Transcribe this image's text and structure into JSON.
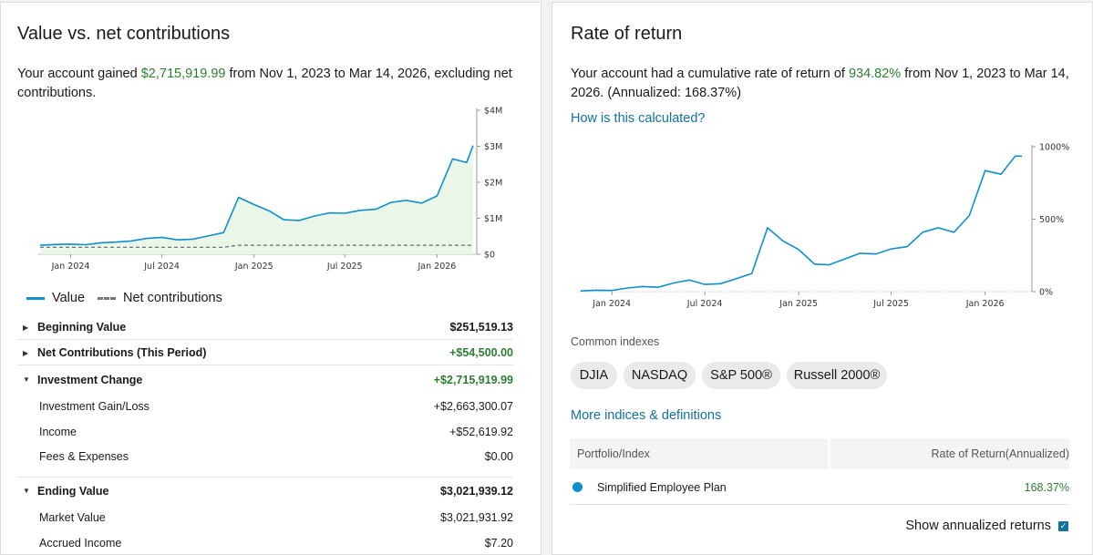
{
  "value_panel": {
    "title": "Value vs. net contributions",
    "summary_prefix": "Your account gained ",
    "gain": "$2,715,919.99",
    "summary_suffix": " from Nov 1, 2023 to Mar 14, 2026, excluding net contributions.",
    "legend_value": "Value",
    "legend_net": "Net contributions",
    "rows": {
      "beginning": {
        "label": "Beginning Value",
        "value": "$251,519.13"
      },
      "net_contrib": {
        "label": "Net Contributions (This Period)",
        "value": "+$54,500.00"
      },
      "investment_change": {
        "label": "Investment Change",
        "value": "+$2,715,919.99"
      },
      "gain_loss": {
        "label": "Investment Gain/Loss",
        "value": "+$2,663,300.07"
      },
      "income": {
        "label": "Income",
        "value": "+$52,619.92"
      },
      "fees": {
        "label": "Fees & Expenses",
        "value": "$0.00"
      },
      "ending": {
        "label": "Ending Value",
        "value": "$3,021,939.12"
      },
      "market": {
        "label": "Market Value",
        "value": "$3,021,931.92"
      },
      "accrued": {
        "label": "Accrued Income",
        "value": "$7.20"
      }
    }
  },
  "return_panel": {
    "title": "Rate of return",
    "summary_prefix": "Your account had a cumulative rate of return of ",
    "rate": "934.82%",
    "summary_suffix": " from Nov 1, 2023 to Mar 14, 2026. (Annualized: 168.37%)",
    "how_link": "How is this calculated?",
    "common_indexes_label": "Common indexes",
    "chips": [
      "DJIA",
      "NASDAQ",
      "S&P 500®",
      "Russell 2000®"
    ],
    "more_link": "More indices & definitions",
    "table": {
      "col1": "Portfolio/Index",
      "col2": "Rate of Return(Annualized)",
      "row_name": "Simplified Employee Plan",
      "row_value": "168.37%"
    },
    "show_annualized": "Show annualized returns"
  },
  "colors": {
    "line": "#0f8fce",
    "area": "#eaf6e8",
    "positive": "#2e7d32",
    "link": "#12739e"
  },
  "chart_data": [
    {
      "type": "area",
      "x_ticks": [
        "Jan 2024",
        "Jul 2024",
        "Jan 2025",
        "Jul 2025",
        "Jan 2026"
      ],
      "y_ticks": [
        "$0",
        "$1M",
        "$2M",
        "$3M",
        "$4M"
      ],
      "ylim": [
        0,
        4000000
      ],
      "series": [
        {
          "name": "Value",
          "x": [
            "2023-11-01",
            "2023-12-01",
            "2024-01-01",
            "2024-02-01",
            "2024-03-01",
            "2024-04-01",
            "2024-05-01",
            "2024-06-01",
            "2024-07-01",
            "2024-08-01",
            "2024-09-01",
            "2024-10-01",
            "2024-11-01",
            "2024-12-01",
            "2025-01-01",
            "2025-02-01",
            "2025-03-01",
            "2025-04-01",
            "2025-05-01",
            "2025-06-01",
            "2025-07-01",
            "2025-08-01",
            "2025-09-01",
            "2025-10-01",
            "2025-11-01",
            "2025-12-01",
            "2026-01-01",
            "2026-02-01",
            "2026-03-01",
            "2026-03-14"
          ],
          "values": [
            250000,
            270000,
            280000,
            265000,
            320000,
            340000,
            370000,
            440000,
            470000,
            400000,
            420000,
            510000,
            600000,
            1580000,
            1380000,
            1200000,
            960000,
            940000,
            1060000,
            1150000,
            1140000,
            1220000,
            1250000,
            1440000,
            1500000,
            1420000,
            1620000,
            2650000,
            2550000,
            3020000
          ]
        },
        {
          "name": "Net contributions",
          "x": [
            "2023-11-01",
            "2024-11-01",
            "2024-12-01",
            "2026-03-14"
          ],
          "values": [
            195000,
            195000,
            249500,
            249500
          ]
        }
      ]
    },
    {
      "type": "line",
      "x_ticks": [
        "Jan 2024",
        "Jul 2024",
        "Jan 2025",
        "Jul 2025",
        "Jan 2026"
      ],
      "y_ticks": [
        "0%",
        "500%",
        "1000%"
      ],
      "ylim": [
        0,
        1000
      ],
      "series": [
        {
          "name": "Simplified Employee Plan",
          "x": [
            "2023-11-01",
            "2023-12-01",
            "2024-01-01",
            "2024-02-01",
            "2024-03-01",
            "2024-04-01",
            "2024-05-01",
            "2024-06-01",
            "2024-07-01",
            "2024-08-01",
            "2024-09-01",
            "2024-10-01",
            "2024-11-01",
            "2024-12-01",
            "2025-01-01",
            "2025-02-01",
            "2025-03-01",
            "2025-04-01",
            "2025-05-01",
            "2025-06-01",
            "2025-07-01",
            "2025-08-01",
            "2025-09-01",
            "2025-10-01",
            "2025-11-01",
            "2025-12-01",
            "2026-01-01",
            "2026-02-01",
            "2026-03-01",
            "2026-03-14"
          ],
          "values": [
            5,
            10,
            8,
            25,
            35,
            30,
            60,
            80,
            50,
            55,
            90,
            125,
            440,
            350,
            290,
            190,
            185,
            225,
            265,
            260,
            295,
            310,
            410,
            440,
            410,
            525,
            835,
            810,
            935,
            935
          ]
        }
      ]
    }
  ]
}
